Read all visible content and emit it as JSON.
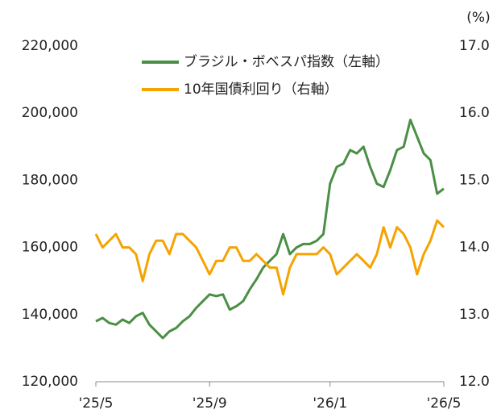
{
  "chart_data": {
    "type": "line",
    "y2_unit": "(%)",
    "categories": [
      "'25/5",
      null,
      null,
      null,
      null,
      null,
      null,
      null,
      null,
      null,
      null,
      null,
      null,
      null,
      null,
      null,
      null,
      "'25/9",
      null,
      null,
      null,
      null,
      null,
      null,
      null,
      null,
      null,
      null,
      null,
      null,
      null,
      null,
      null,
      null,
      null,
      "'26/1",
      null,
      null,
      null,
      null,
      null,
      null,
      null,
      null,
      null,
      null,
      null,
      null,
      null,
      null,
      null,
      null,
      "'26/5"
    ],
    "series": [
      {
        "name": "ブラジル・ボベスパ指数（左軸）",
        "color": "#4a8f45",
        "axis": "y",
        "values": [
          138000,
          139000,
          137500,
          137000,
          138500,
          137500,
          139500,
          140500,
          137000,
          135000,
          133000,
          135000,
          136000,
          138000,
          139500,
          142000,
          144000,
          146000,
          145500,
          146000,
          141500,
          142500,
          144000,
          147500,
          150500,
          154000,
          156000,
          158000,
          164000,
          158000,
          160000,
          161000,
          161000,
          162000,
          164000,
          179000,
          184000,
          185000,
          189000,
          188000,
          190000,
          184000,
          179000,
          178000,
          183000,
          189000,
          190000,
          198000,
          193000,
          188000,
          186000,
          176000,
          177500
        ]
      },
      {
        "name": "10年国債利回り（右軸）",
        "color": "#f5a300",
        "axis": "y2",
        "values": [
          14.2,
          14.0,
          14.1,
          14.2,
          14.0,
          14.0,
          13.9,
          13.5,
          13.9,
          14.1,
          14.1,
          13.9,
          14.2,
          14.2,
          14.1,
          14.0,
          13.8,
          13.6,
          13.8,
          13.8,
          14.0,
          14.0,
          13.8,
          13.8,
          13.9,
          13.8,
          13.7,
          13.7,
          13.3,
          13.7,
          13.9,
          13.9,
          13.9,
          13.9,
          14.0,
          13.9,
          13.6,
          13.7,
          13.8,
          13.9,
          13.8,
          13.7,
          13.9,
          14.3,
          14.0,
          14.3,
          14.2,
          14.0,
          13.6,
          13.9,
          14.1,
          14.4,
          14.3
        ]
      }
    ],
    "ylim": [
      120000,
      220000
    ],
    "yticks": [
      {
        "value": 120000,
        "label": "120,000"
      },
      {
        "value": 140000,
        "label": "140,000"
      },
      {
        "value": 160000,
        "label": "160,000"
      },
      {
        "value": 180000,
        "label": "180,000"
      },
      {
        "value": 200000,
        "label": "200,000"
      },
      {
        "value": 220000,
        "label": "220,000"
      }
    ],
    "y2lim": [
      12,
      17
    ],
    "y2ticks": [
      {
        "value": 12,
        "label": "12.0"
      },
      {
        "value": 13,
        "label": "13.0"
      },
      {
        "value": 14,
        "label": "14.0"
      },
      {
        "value": 15,
        "label": "15.0"
      },
      {
        "value": 16,
        "label": "16.0"
      },
      {
        "value": 17,
        "label": "17.0"
      }
    ],
    "grid": false,
    "legend": "top"
  }
}
